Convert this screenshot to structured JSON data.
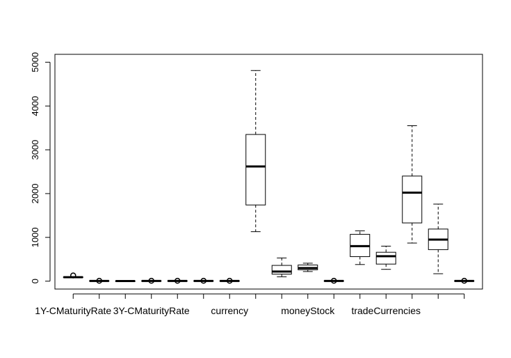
{
  "chart_data": {
    "type": "boxplot",
    "title": "",
    "xlabel": "",
    "ylabel": "",
    "ylim": [
      -180,
      5180
    ],
    "y_ticks": [
      0,
      1000,
      2000,
      3000,
      4000,
      5000
    ],
    "grid": false,
    "legend": "none",
    "tick_labels": [
      "1Y-CMaturityRate",
      "",
      "3Y-CMaturityRate",
      "",
      "currency",
      "",
      "moneyStock",
      "",
      "tradeCurrencies",
      ""
    ],
    "tick_label_values": [
      "1Y-CMaturityRate",
      "3Y-CMaturityRate",
      "currency",
      "moneyStock",
      "tradeCurrencies"
    ],
    "boxes": [
      {
        "min": 80,
        "q1": 85,
        "median": 90,
        "q3": 95,
        "max": 100,
        "outliers": [
          130
        ]
      },
      {
        "min": 0,
        "q1": 2,
        "median": 5,
        "q3": 8,
        "max": 12,
        "outliers": [
          8
        ]
      },
      {
        "min": 0,
        "q1": 1,
        "median": 2,
        "q3": 4,
        "max": 6,
        "outliers": []
      },
      {
        "min": 0,
        "q1": 2,
        "median": 5,
        "q3": 8,
        "max": 12,
        "outliers": [
          8
        ]
      },
      {
        "min": 0,
        "q1": 2,
        "median": 5,
        "q3": 8,
        "max": 12,
        "outliers": [
          8
        ]
      },
      {
        "min": 0,
        "q1": 2,
        "median": 5,
        "q3": 8,
        "max": 12,
        "outliers": [
          8
        ]
      },
      {
        "min": 0,
        "q1": 2,
        "median": 5,
        "q3": 8,
        "max": 12,
        "outliers": [
          8
        ]
      },
      {
        "min": 1130,
        "q1": 1740,
        "median": 2620,
        "q3": 3350,
        "max": 4810,
        "outliers": []
      },
      {
        "min": 100,
        "q1": 160,
        "median": 220,
        "q3": 360,
        "max": 530,
        "outliers": []
      },
      {
        "min": 220,
        "q1": 260,
        "median": 300,
        "q3": 370,
        "max": 410,
        "outliers": []
      },
      {
        "min": 0,
        "q1": 2,
        "median": 5,
        "q3": 8,
        "max": 12,
        "outliers": [
          8
        ]
      },
      {
        "min": 380,
        "q1": 560,
        "median": 800,
        "q3": 1070,
        "max": 1150,
        "outliers": []
      },
      {
        "min": 270,
        "q1": 390,
        "median": 570,
        "q3": 660,
        "max": 800,
        "outliers": []
      },
      {
        "min": 870,
        "q1": 1330,
        "median": 2020,
        "q3": 2400,
        "max": 3550,
        "outliers": []
      },
      {
        "min": 170,
        "q1": 720,
        "median": 950,
        "q3": 1190,
        "max": 1760,
        "outliers": []
      },
      {
        "min": 0,
        "q1": 2,
        "median": 5,
        "q3": 8,
        "max": 12,
        "outliers": [
          8
        ]
      }
    ]
  }
}
